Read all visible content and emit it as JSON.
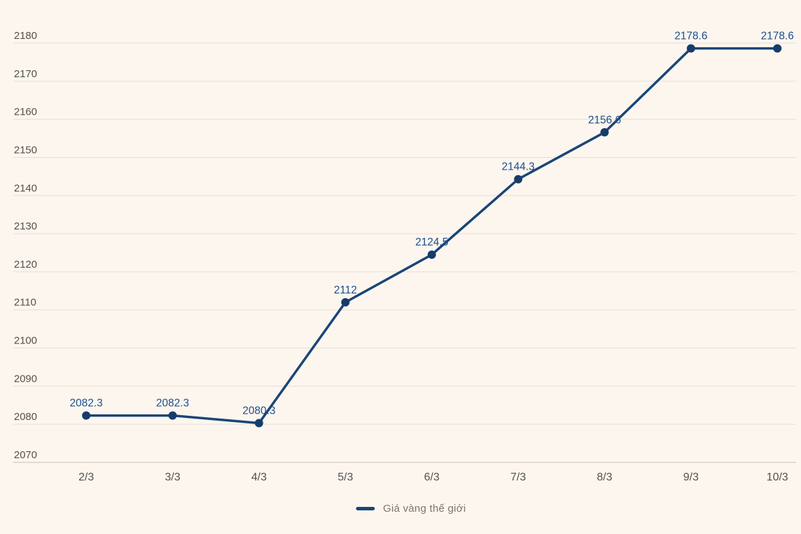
{
  "legend": {
    "label": "Giá vàng thế giới"
  },
  "chart_data": {
    "type": "line",
    "title": "",
    "xlabel": "",
    "ylabel": "",
    "categories": [
      "2/3",
      "3/3",
      "4/3",
      "5/3",
      "6/3",
      "7/3",
      "8/3",
      "9/3",
      "10/3"
    ],
    "series": [
      {
        "name": "Giá vàng thế giới",
        "values": [
          2082.3,
          2082.3,
          2080.3,
          2112,
          2124.5,
          2144.3,
          2156.6,
          2178.6,
          2178.6
        ],
        "point_labels": [
          "2082.3",
          "2082.3",
          "2080.3",
          "2112",
          "2124.5",
          "2144.3",
          "2156.6",
          "2178.6",
          "2178.6"
        ],
        "color": "#1a4577"
      }
    ],
    "ylim": [
      2070,
      2180
    ],
    "yticks": [
      2070,
      2080,
      2090,
      2100,
      2110,
      2120,
      2130,
      2140,
      2150,
      2160,
      2170,
      2180
    ],
    "grid": "horizontal",
    "legend_position": "bottom",
    "colors": {
      "background": "#fcf6ef",
      "line": "#1a4577",
      "marker": "#163c6b",
      "data_label": "#1e4e8c",
      "axis_label": "#55504a",
      "gridline": "#e4ded6",
      "axis_line": "#c3bdb4",
      "legend_text": "#787470"
    }
  }
}
